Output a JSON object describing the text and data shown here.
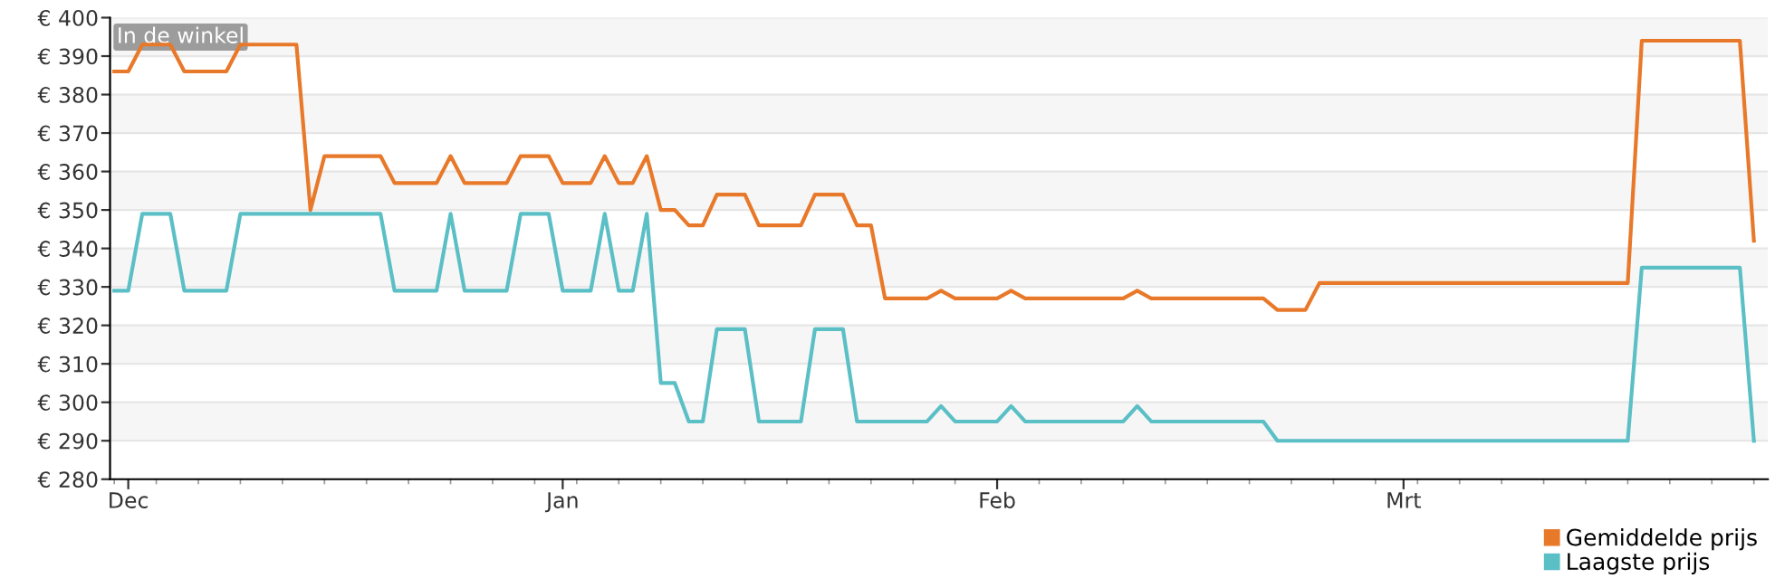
{
  "chart_data": {
    "type": "line",
    "annotations": [
      "In de winkel"
    ],
    "categories": [
      null,
      "Dec",
      null,
      null,
      null,
      null,
      null,
      null,
      null,
      null,
      null,
      null,
      null,
      null,
      null,
      null,
      null,
      null,
      null,
      null,
      null,
      null,
      null,
      null,
      null,
      null,
      null,
      null,
      null,
      null,
      null,
      null,
      "Jan",
      null,
      null,
      null,
      null,
      null,
      null,
      null,
      null,
      null,
      null,
      null,
      null,
      null,
      null,
      null,
      null,
      null,
      null,
      null,
      null,
      null,
      null,
      null,
      null,
      null,
      null,
      null,
      null,
      null,
      null,
      "Feb",
      null,
      null,
      null,
      null,
      null,
      null,
      null,
      null,
      null,
      null,
      null,
      null,
      null,
      null,
      null,
      null,
      null,
      null,
      null,
      null,
      null,
      null,
      null,
      null,
      null,
      null,
      null,
      null,
      "Mrt",
      null,
      null,
      null,
      null,
      null,
      null,
      null,
      null,
      null,
      null,
      null,
      null,
      null,
      null,
      null,
      null,
      null,
      null,
      null,
      null,
      null,
      null,
      null,
      null,
      null
    ],
    "ylim": [
      280,
      400
    ],
    "yticks": [
      {
        "value": 280,
        "label": "€ 280"
      },
      {
        "value": 290,
        "label": "€ 290"
      },
      {
        "value": 300,
        "label": "€ 300"
      },
      {
        "value": 310,
        "label": "€ 310"
      },
      {
        "value": 320,
        "label": "€ 320"
      },
      {
        "value": 330,
        "label": "€ 330"
      },
      {
        "value": 340,
        "label": "€ 340"
      },
      {
        "value": 350,
        "label": "€ 350"
      },
      {
        "value": 360,
        "label": "€ 360"
      },
      {
        "value": 370,
        "label": "€ 370"
      },
      {
        "value": 380,
        "label": "€ 380"
      },
      {
        "value": 390,
        "label": "€ 390"
      },
      {
        "value": 400,
        "label": "€ 400"
      }
    ],
    "grid": "y",
    "legend": "bottom right",
    "marker": "none",
    "line_style": "solid",
    "series": [
      {
        "name": "Gemiddelde prijs",
        "color": "#e8792a",
        "values": [
          386,
          386,
          393,
          393,
          393,
          386,
          386,
          386,
          386,
          393,
          393,
          393,
          393,
          393,
          350,
          364,
          364,
          364,
          364,
          364,
          357,
          357,
          357,
          357,
          364,
          357,
          357,
          357,
          357,
          364,
          364,
          364,
          357,
          357,
          357,
          364,
          357,
          357,
          364,
          350,
          350,
          346,
          346,
          354,
          354,
          354,
          346,
          346,
          346,
          346,
          354,
          354,
          354,
          346,
          346,
          327,
          327,
          327,
          327,
          329,
          327,
          327,
          327,
          327,
          329,
          327,
          327,
          327,
          327,
          327,
          327,
          327,
          327,
          329,
          327,
          327,
          327,
          327,
          327,
          327,
          327,
          327,
          327,
          324,
          324,
          324,
          331,
          331,
          331,
          331,
          331,
          331,
          331,
          331,
          331,
          331,
          331,
          331,
          331,
          331,
          331,
          331,
          331,
          331,
          331,
          331,
          331,
          331,
          331,
          394,
          394,
          394,
          394,
          394,
          394,
          394,
          394,
          342
        ]
      },
      {
        "name": "Laagste prijs",
        "color": "#5bbfc6",
        "values": [
          329,
          329,
          349,
          349,
          349,
          329,
          329,
          329,
          329,
          349,
          349,
          349,
          349,
          349,
          349,
          349,
          349,
          349,
          349,
          349,
          329,
          329,
          329,
          329,
          349,
          329,
          329,
          329,
          329,
          349,
          349,
          349,
          329,
          329,
          329,
          349,
          329,
          329,
          349,
          305,
          305,
          295,
          295,
          319,
          319,
          319,
          295,
          295,
          295,
          295,
          319,
          319,
          319,
          295,
          295,
          295,
          295,
          295,
          295,
          299,
          295,
          295,
          295,
          295,
          299,
          295,
          295,
          295,
          295,
          295,
          295,
          295,
          295,
          299,
          295,
          295,
          295,
          295,
          295,
          295,
          295,
          295,
          295,
          290,
          290,
          290,
          290,
          290,
          290,
          290,
          290,
          290,
          290,
          290,
          290,
          290,
          290,
          290,
          290,
          290,
          290,
          290,
          290,
          290,
          290,
          290,
          290,
          290,
          290,
          335,
          335,
          335,
          335,
          335,
          335,
          335,
          335,
          290
        ]
      }
    ]
  }
}
